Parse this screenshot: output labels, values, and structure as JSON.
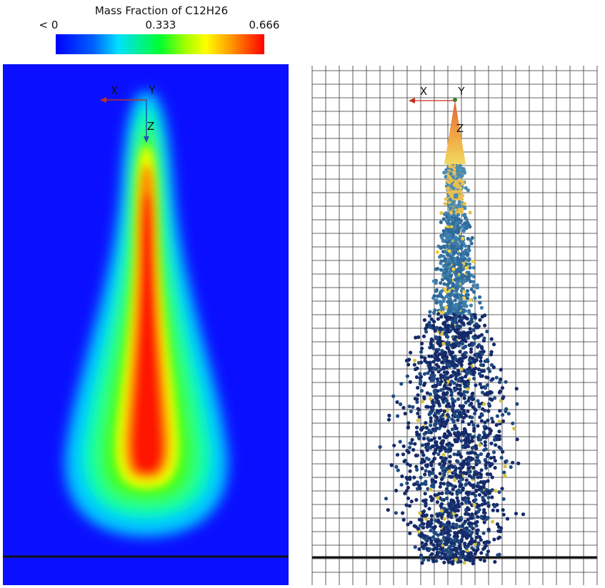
{
  "colorbar": {
    "title": "Mass Fraction of C12H26",
    "labels": [
      "< 0",
      "0.333",
      "0.666"
    ]
  },
  "left_view": {
    "axes": {
      "x": "X",
      "y": "Y",
      "z": "Z"
    }
  },
  "right_view": {
    "axes": {
      "x": "X",
      "y": "Y",
      "z": "Z"
    }
  }
}
